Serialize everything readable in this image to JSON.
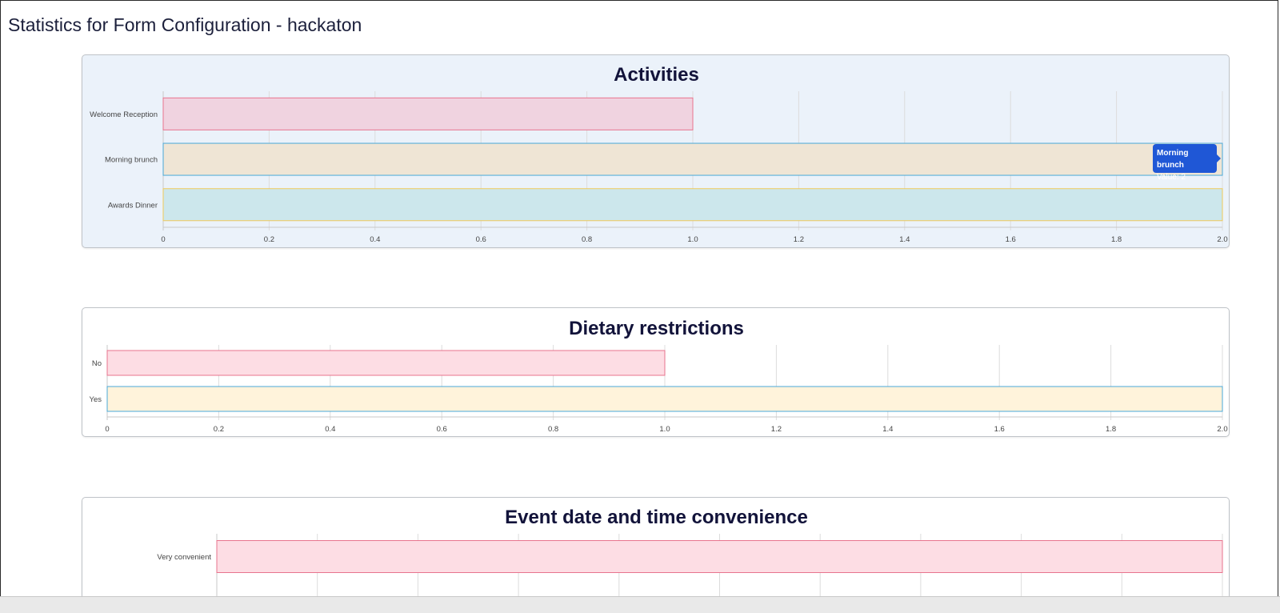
{
  "page": {
    "title": "Statistics for Form Configuration - hackaton"
  },
  "tooltip": {
    "title": "Morning brunch",
    "value_label": "Value: ",
    "value": "2"
  },
  "chart_data": [
    {
      "type": "bar",
      "orientation": "horizontal",
      "title": "Activities",
      "categories": [
        "Welcome Reception",
        "Morning brunch",
        "Awards Dinner"
      ],
      "values": [
        1,
        2,
        2
      ],
      "xlim": [
        0,
        2
      ],
      "xticks": [
        "0",
        "0.2",
        "0.4",
        "0.6",
        "0.8",
        "1.0",
        "1.2",
        "1.4",
        "1.6",
        "1.8",
        "2.0"
      ],
      "grid": true,
      "colors": {
        "fill": [
          "#f0d3e0",
          "#efe5d5",
          "#cce7ec"
        ],
        "stroke": [
          "#e8748e",
          "#4aa8d8",
          "#f0c95a"
        ]
      }
    },
    {
      "type": "bar",
      "orientation": "horizontal",
      "title": "Dietary restrictions",
      "categories": [
        "No",
        "Yes"
      ],
      "values": [
        1,
        2
      ],
      "xlim": [
        0,
        2
      ],
      "xticks": [
        "0",
        "0.2",
        "0.4",
        "0.6",
        "0.8",
        "1.0",
        "1.2",
        "1.4",
        "1.6",
        "1.8",
        "2.0"
      ],
      "grid": true,
      "colors": {
        "fill": [
          "#fddde4",
          "#fff3db"
        ],
        "stroke": [
          "#e8748e",
          "#4aa8d8"
        ]
      }
    },
    {
      "type": "bar",
      "orientation": "horizontal",
      "title": "Event date and time convenience",
      "categories": [
        "Very convenient"
      ],
      "values": [
        2
      ],
      "xlim": [
        0,
        2
      ],
      "xticks": [],
      "grid": true,
      "colors": {
        "fill": [
          "#fddde4"
        ],
        "stroke": [
          "#e8748e"
        ]
      }
    }
  ]
}
